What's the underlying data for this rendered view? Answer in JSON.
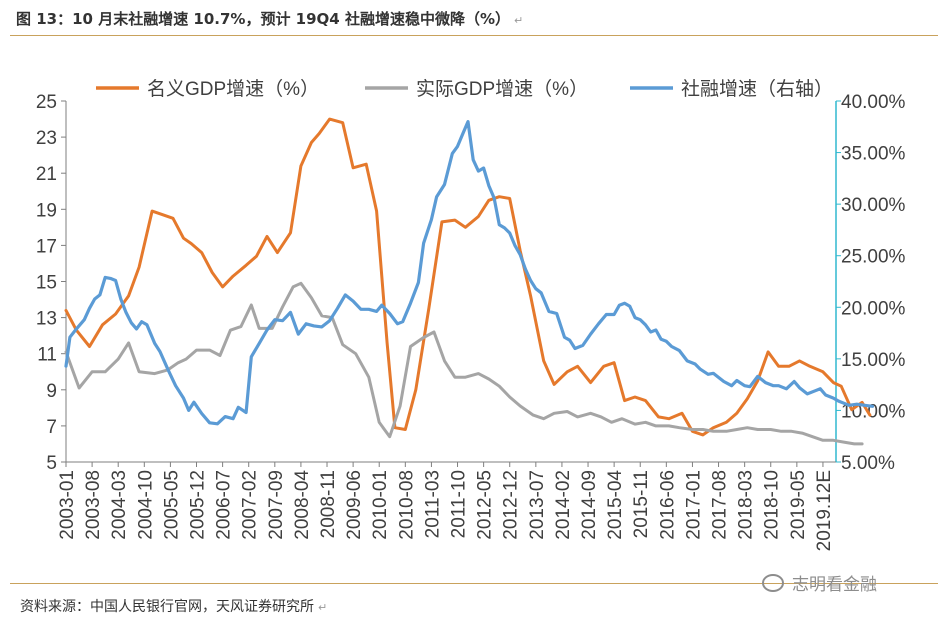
{
  "header": {
    "title": "图 13：10 月末社融增速 10.7%，预计 19Q4 社融增速稳中微降（%）",
    "title_mark": "↵"
  },
  "footer": {
    "source": "资料来源：中国人民银行官网，天风证券研究所",
    "source_mark": "↵",
    "watermark": "志明看金融"
  },
  "chart_data": {
    "type": "line",
    "x_labels": [
      "2003-01",
      "2003-08",
      "2004-03",
      "2004-10",
      "2005-05",
      "2005-12",
      "2006-07",
      "2007-02",
      "2007-09",
      "2008-04",
      "2008-11",
      "2009-06",
      "2010-01",
      "2010-08",
      "2011-03",
      "2011-10",
      "2012-05",
      "2012-12",
      "2013-07",
      "2014-02",
      "2014-09",
      "2015-04",
      "2015-11",
      "2016-06",
      "2017-01",
      "2017-08",
      "2018-03",
      "2018-10",
      "2019-05",
      "2019.12E"
    ],
    "left_axis": {
      "ylim": [
        5,
        25
      ],
      "ticks": [
        "5",
        "7",
        "9",
        "11",
        "13",
        "15",
        "17",
        "19",
        "21",
        "23",
        "25"
      ]
    },
    "right_axis": {
      "ylim": [
        5,
        40
      ],
      "ticks": [
        "5.00%",
        "10.00%",
        "15.00%",
        "20.00%",
        "25.00%",
        "30.00%",
        "35.00%",
        "40.00%"
      ]
    },
    "series": [
      {
        "name": "名义GDP增速（%）",
        "axis": "left",
        "color": "#e5792c",
        "points": [
          [
            0,
            13.4
          ],
          [
            0.4,
            12.3
          ],
          [
            0.9,
            11.4
          ],
          [
            1.4,
            12.6
          ],
          [
            1.9,
            13.2
          ],
          [
            2.4,
            14.2
          ],
          [
            2.8,
            15.8
          ],
          [
            3.3,
            18.9
          ],
          [
            3.7,
            18.7
          ],
          [
            4.1,
            18.5
          ],
          [
            4.5,
            17.4
          ],
          [
            4.8,
            17.1
          ],
          [
            5.2,
            16.6
          ],
          [
            5.6,
            15.5
          ],
          [
            6.0,
            14.7
          ],
          [
            6.4,
            15.3
          ],
          [
            6.9,
            15.9
          ],
          [
            7.3,
            16.4
          ],
          [
            7.7,
            17.5
          ],
          [
            8.1,
            16.6
          ],
          [
            8.6,
            17.7
          ],
          [
            9.0,
            21.4
          ],
          [
            9.4,
            22.7
          ],
          [
            9.7,
            23.2
          ],
          [
            10.1,
            24.0
          ],
          [
            10.6,
            23.8
          ],
          [
            11.0,
            21.3
          ],
          [
            11.5,
            21.5
          ],
          [
            11.9,
            18.9
          ],
          [
            12.3,
            11.6
          ],
          [
            12.6,
            6.9
          ],
          [
            13.0,
            6.8
          ],
          [
            13.4,
            9.0
          ],
          [
            13.9,
            13.5
          ],
          [
            14.4,
            18.3
          ],
          [
            14.9,
            18.4
          ],
          [
            15.3,
            18.0
          ],
          [
            15.8,
            18.6
          ],
          [
            16.2,
            19.5
          ],
          [
            16.6,
            19.7
          ],
          [
            17.0,
            19.6
          ],
          [
            17.4,
            16.7
          ],
          [
            17.8,
            14.2
          ],
          [
            18.3,
            10.6
          ],
          [
            18.7,
            9.3
          ],
          [
            19.2,
            10.0
          ],
          [
            19.6,
            10.3
          ],
          [
            20.1,
            9.4
          ],
          [
            20.6,
            10.3
          ],
          [
            21.0,
            10.5
          ],
          [
            21.4,
            8.4
          ],
          [
            21.8,
            8.6
          ],
          [
            22.2,
            8.4
          ],
          [
            22.7,
            7.5
          ],
          [
            23.1,
            7.4
          ],
          [
            23.6,
            7.7
          ],
          [
            24.0,
            6.7
          ],
          [
            24.4,
            6.5
          ],
          [
            24.8,
            6.9
          ],
          [
            25.3,
            7.2
          ],
          [
            25.7,
            7.7
          ],
          [
            26.1,
            8.5
          ],
          [
            26.5,
            9.5
          ],
          [
            26.9,
            11.1
          ],
          [
            27.3,
            10.3
          ],
          [
            27.7,
            10.3
          ],
          [
            28.1,
            10.6
          ],
          [
            28.5,
            10.3
          ],
          [
            29.0,
            10.0
          ],
          [
            29.4,
            9.4
          ],
          [
            29.7,
            9.2
          ],
          [
            30.1,
            7.9
          ],
          [
            30.5,
            8.3
          ],
          [
            30.8,
            7.6
          ]
        ]
      },
      {
        "name": "实际GDP增速（%）",
        "axis": "left",
        "color": "#a5a5a5",
        "points": [
          [
            0,
            11.1
          ],
          [
            0.5,
            9.1
          ],
          [
            1.0,
            10.0
          ],
          [
            1.5,
            10.0
          ],
          [
            2.0,
            10.7
          ],
          [
            2.4,
            11.6
          ],
          [
            2.8,
            10.0
          ],
          [
            3.4,
            9.9
          ],
          [
            3.9,
            10.1
          ],
          [
            4.3,
            10.5
          ],
          [
            4.6,
            10.7
          ],
          [
            5.0,
            11.2
          ],
          [
            5.5,
            11.2
          ],
          [
            5.9,
            10.9
          ],
          [
            6.3,
            12.3
          ],
          [
            6.7,
            12.5
          ],
          [
            7.1,
            13.7
          ],
          [
            7.4,
            12.4
          ],
          [
            7.9,
            12.4
          ],
          [
            8.3,
            13.6
          ],
          [
            8.7,
            14.7
          ],
          [
            9.0,
            14.9
          ],
          [
            9.4,
            14.1
          ],
          [
            9.8,
            13.1
          ],
          [
            10.2,
            13.0
          ],
          [
            10.6,
            11.5
          ],
          [
            11.1,
            11.0
          ],
          [
            11.6,
            9.7
          ],
          [
            12.0,
            7.2
          ],
          [
            12.4,
            6.4
          ],
          [
            12.8,
            8.1
          ],
          [
            13.2,
            11.4
          ],
          [
            13.7,
            11.9
          ],
          [
            14.1,
            12.2
          ],
          [
            14.5,
            10.6
          ],
          [
            14.9,
            9.7
          ],
          [
            15.3,
            9.7
          ],
          [
            15.8,
            9.9
          ],
          [
            16.2,
            9.6
          ],
          [
            16.6,
            9.2
          ],
          [
            17.0,
            8.6
          ],
          [
            17.4,
            8.1
          ],
          [
            17.9,
            7.6
          ],
          [
            18.3,
            7.4
          ],
          [
            18.7,
            7.7
          ],
          [
            19.2,
            7.8
          ],
          [
            19.6,
            7.5
          ],
          [
            20.1,
            7.7
          ],
          [
            20.5,
            7.5
          ],
          [
            20.9,
            7.2
          ],
          [
            21.3,
            7.4
          ],
          [
            21.8,
            7.1
          ],
          [
            22.2,
            7.2
          ],
          [
            22.6,
            7.0
          ],
          [
            23.1,
            7.0
          ],
          [
            23.5,
            6.9
          ],
          [
            24.0,
            6.8
          ],
          [
            24.4,
            6.8
          ],
          [
            24.8,
            6.7
          ],
          [
            25.3,
            6.7
          ],
          [
            25.7,
            6.8
          ],
          [
            26.1,
            6.9
          ],
          [
            26.5,
            6.8
          ],
          [
            27.0,
            6.8
          ],
          [
            27.4,
            6.7
          ],
          [
            27.8,
            6.7
          ],
          [
            28.2,
            6.6
          ],
          [
            28.6,
            6.4
          ],
          [
            29.0,
            6.2
          ],
          [
            29.4,
            6.2
          ],
          [
            29.8,
            6.1
          ],
          [
            30.2,
            6.0
          ],
          [
            30.5,
            6.0
          ]
        ]
      },
      {
        "name": "社融增速（右轴）",
        "axis": "right",
        "color": "#5b9bd5",
        "points": [
          [
            0,
            14.3
          ],
          [
            0.15,
            17.1
          ],
          [
            0.4,
            17.9
          ],
          [
            0.7,
            18.8
          ],
          [
            0.9,
            19.9
          ],
          [
            1.1,
            20.8
          ],
          [
            1.3,
            21.2
          ],
          [
            1.5,
            22.9
          ],
          [
            1.7,
            22.8
          ],
          [
            1.9,
            22.6
          ],
          [
            2.1,
            20.8
          ],
          [
            2.3,
            19.5
          ],
          [
            2.5,
            18.5
          ],
          [
            2.7,
            17.9
          ],
          [
            2.9,
            18.6
          ],
          [
            3.1,
            18.3
          ],
          [
            3.4,
            16.5
          ],
          [
            3.6,
            15.7
          ],
          [
            3.9,
            14.0
          ],
          [
            4.2,
            12.4
          ],
          [
            4.5,
            11.2
          ],
          [
            4.7,
            10.0
          ],
          [
            4.9,
            10.8
          ],
          [
            5.2,
            9.7
          ],
          [
            5.5,
            8.8
          ],
          [
            5.8,
            8.7
          ],
          [
            6.1,
            9.4
          ],
          [
            6.4,
            9.2
          ],
          [
            6.6,
            10.3
          ],
          [
            6.9,
            9.8
          ],
          [
            7.1,
            15.2
          ],
          [
            7.4,
            16.5
          ],
          [
            7.7,
            17.8
          ],
          [
            8.0,
            18.8
          ],
          [
            8.3,
            18.7
          ],
          [
            8.6,
            19.5
          ],
          [
            8.9,
            17.4
          ],
          [
            9.2,
            18.4
          ],
          [
            9.5,
            18.2
          ],
          [
            9.8,
            18.1
          ],
          [
            10.1,
            18.7
          ],
          [
            10.4,
            19.9
          ],
          [
            10.7,
            21.2
          ],
          [
            11.0,
            20.6
          ],
          [
            11.3,
            19.8
          ],
          [
            11.6,
            19.8
          ],
          [
            11.9,
            19.6
          ],
          [
            12.1,
            20.2
          ],
          [
            12.4,
            19.4
          ],
          [
            12.7,
            18.4
          ],
          [
            12.9,
            18.6
          ],
          [
            13.2,
            20.4
          ],
          [
            13.5,
            22.4
          ],
          [
            13.7,
            26.2
          ],
          [
            14.0,
            28.5
          ],
          [
            14.2,
            30.7
          ],
          [
            14.5,
            31.9
          ],
          [
            14.8,
            34.9
          ],
          [
            15.0,
            35.6
          ],
          [
            15.2,
            36.8
          ],
          [
            15.4,
            38.0
          ],
          [
            15.6,
            34.3
          ],
          [
            15.8,
            33.2
          ],
          [
            16.0,
            33.5
          ],
          [
            16.2,
            31.8
          ],
          [
            16.4,
            30.6
          ],
          [
            16.6,
            28.0
          ],
          [
            16.8,
            27.7
          ],
          [
            17.0,
            27.2
          ],
          [
            17.2,
            26.0
          ],
          [
            17.4,
            25.1
          ],
          [
            17.6,
            23.7
          ],
          [
            17.8,
            22.6
          ],
          [
            18.0,
            21.8
          ],
          [
            18.2,
            21.4
          ],
          [
            18.5,
            19.6
          ],
          [
            18.8,
            19.4
          ],
          [
            19.1,
            17.1
          ],
          [
            19.3,
            16.8
          ],
          [
            19.5,
            16.0
          ],
          [
            19.8,
            16.3
          ],
          [
            20.1,
            17.4
          ],
          [
            20.4,
            18.4
          ],
          [
            20.7,
            19.3
          ],
          [
            21.0,
            19.3
          ],
          [
            21.2,
            20.2
          ],
          [
            21.4,
            20.4
          ],
          [
            21.6,
            20.1
          ],
          [
            21.8,
            19.0
          ],
          [
            22.0,
            18.8
          ],
          [
            22.2,
            18.3
          ],
          [
            22.4,
            17.6
          ],
          [
            22.6,
            17.8
          ],
          [
            22.8,
            16.9
          ],
          [
            23.0,
            16.7
          ],
          [
            23.2,
            16.2
          ],
          [
            23.5,
            15.8
          ],
          [
            23.8,
            14.8
          ],
          [
            24.1,
            14.5
          ],
          [
            24.3,
            14.0
          ],
          [
            24.6,
            13.5
          ],
          [
            24.8,
            13.6
          ],
          [
            25.0,
            13.2
          ],
          [
            25.2,
            12.8
          ],
          [
            25.5,
            12.4
          ],
          [
            25.7,
            12.9
          ],
          [
            26.0,
            12.4
          ],
          [
            26.2,
            12.3
          ],
          [
            26.5,
            13.3
          ],
          [
            26.8,
            12.7
          ],
          [
            27.1,
            12.4
          ],
          [
            27.3,
            12.4
          ],
          [
            27.6,
            12.1
          ],
          [
            27.9,
            12.8
          ],
          [
            28.1,
            12.2
          ],
          [
            28.4,
            11.6
          ],
          [
            28.7,
            11.9
          ],
          [
            28.9,
            12.1
          ],
          [
            29.1,
            11.5
          ],
          [
            29.4,
            11.2
          ],
          [
            29.6,
            10.9
          ],
          [
            29.8,
            10.7
          ],
          [
            30.0,
            10.5
          ],
          [
            30.3,
            10.6
          ],
          [
            30.6,
            10.5
          ],
          [
            30.9,
            10.4
          ]
        ]
      }
    ]
  }
}
